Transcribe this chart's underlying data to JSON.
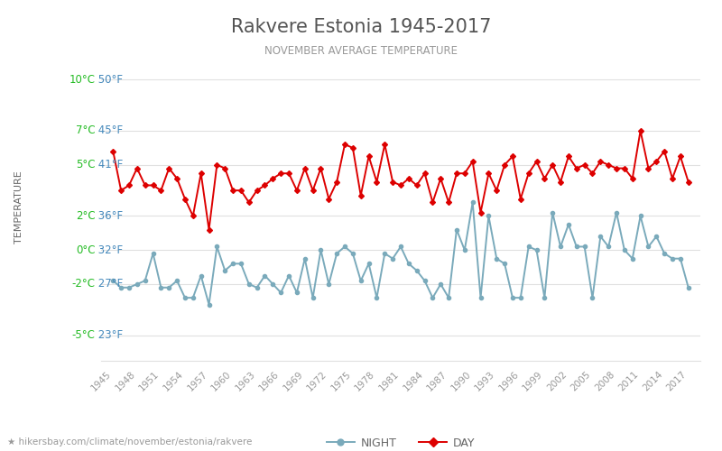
{
  "title": "Rakvere Estonia 1945-2017",
  "subtitle": "NOVEMBER AVERAGE TEMPERATURE",
  "ylabel": "TEMPERATURE",
  "xlabel_url": "hikersbay.com/climate/november/estonia/rakvere",
  "ylim": [
    -6.5,
    11.5
  ],
  "yticks_celsius": [
    -5,
    -2,
    0,
    2,
    5,
    7,
    10
  ],
  "yticks_fahrenheit": [
    23,
    27,
    32,
    36,
    41,
    45,
    50
  ],
  "years": [
    1945,
    1946,
    1947,
    1948,
    1949,
    1950,
    1951,
    1952,
    1953,
    1954,
    1955,
    1956,
    1957,
    1958,
    1959,
    1960,
    1961,
    1962,
    1963,
    1964,
    1965,
    1966,
    1967,
    1968,
    1969,
    1970,
    1971,
    1972,
    1973,
    1974,
    1975,
    1976,
    1977,
    1978,
    1979,
    1980,
    1981,
    1982,
    1983,
    1984,
    1985,
    1986,
    1987,
    1988,
    1989,
    1990,
    1991,
    1992,
    1993,
    1994,
    1995,
    1996,
    1997,
    1998,
    1999,
    2000,
    2001,
    2002,
    2003,
    2004,
    2005,
    2006,
    2007,
    2008,
    2009,
    2010,
    2011,
    2012,
    2013,
    2014,
    2015,
    2016,
    2017
  ],
  "day_temps": [
    5.8,
    3.5,
    3.8,
    4.8,
    3.8,
    3.8,
    3.5,
    4.8,
    4.2,
    3.0,
    2.0,
    4.5,
    1.2,
    5.0,
    4.8,
    3.5,
    3.5,
    2.8,
    3.5,
    3.8,
    4.2,
    4.5,
    4.5,
    3.5,
    4.8,
    3.5,
    4.8,
    3.0,
    4.0,
    6.2,
    6.0,
    3.2,
    5.5,
    4.0,
    6.2,
    4.0,
    3.8,
    4.2,
    3.8,
    4.5,
    2.8,
    4.2,
    2.8,
    4.5,
    4.5,
    5.2,
    2.2,
    4.5,
    3.5,
    5.0,
    5.5,
    3.0,
    4.5,
    5.2,
    4.2,
    5.0,
    4.0,
    5.5,
    4.8,
    5.0,
    4.5,
    5.2,
    5.0,
    4.8,
    4.8,
    4.2,
    7.0,
    4.8,
    5.2,
    5.8,
    4.2,
    5.5,
    4.0
  ],
  "night_temps": [
    -1.8,
    -2.2,
    -2.2,
    -2.0,
    -1.8,
    -0.2,
    -2.2,
    -2.2,
    -1.8,
    -2.8,
    -2.8,
    -1.5,
    -3.2,
    0.2,
    -1.2,
    -0.8,
    -0.8,
    -2.0,
    -2.2,
    -1.5,
    -2.0,
    -2.5,
    -1.5,
    -2.5,
    -0.5,
    -2.8,
    0.0,
    -2.0,
    -0.2,
    0.2,
    -0.2,
    -1.8,
    -0.8,
    -2.8,
    -0.2,
    -0.5,
    0.2,
    -0.8,
    -1.2,
    -1.8,
    -2.8,
    -2.0,
    -2.8,
    1.2,
    0.0,
    2.8,
    -2.8,
    2.0,
    -0.5,
    -0.8,
    -2.8,
    -2.8,
    0.2,
    0.0,
    -2.8,
    2.2,
    0.2,
    1.5,
    0.2,
    0.2,
    -2.8,
    0.8,
    0.2,
    2.2,
    0.0,
    -0.5,
    2.0,
    0.2,
    0.8,
    -0.2,
    -0.5,
    -0.5,
    -2.2
  ],
  "day_color": "#dd0000",
  "night_color": "#7aaabb",
  "title_color": "#555555",
  "subtitle_color": "#999999",
  "ylabel_color": "#666666",
  "ytick_celsius_color": "#22bb22",
  "ytick_fahrenheit_color": "#4488bb",
  "grid_color": "#e0e0e0",
  "bg_color": "#ffffff",
  "xtick_color": "#999999",
  "legend_text_color": "#666666",
  "url_color": "#999999",
  "url_icon_color": "#ddcc00"
}
